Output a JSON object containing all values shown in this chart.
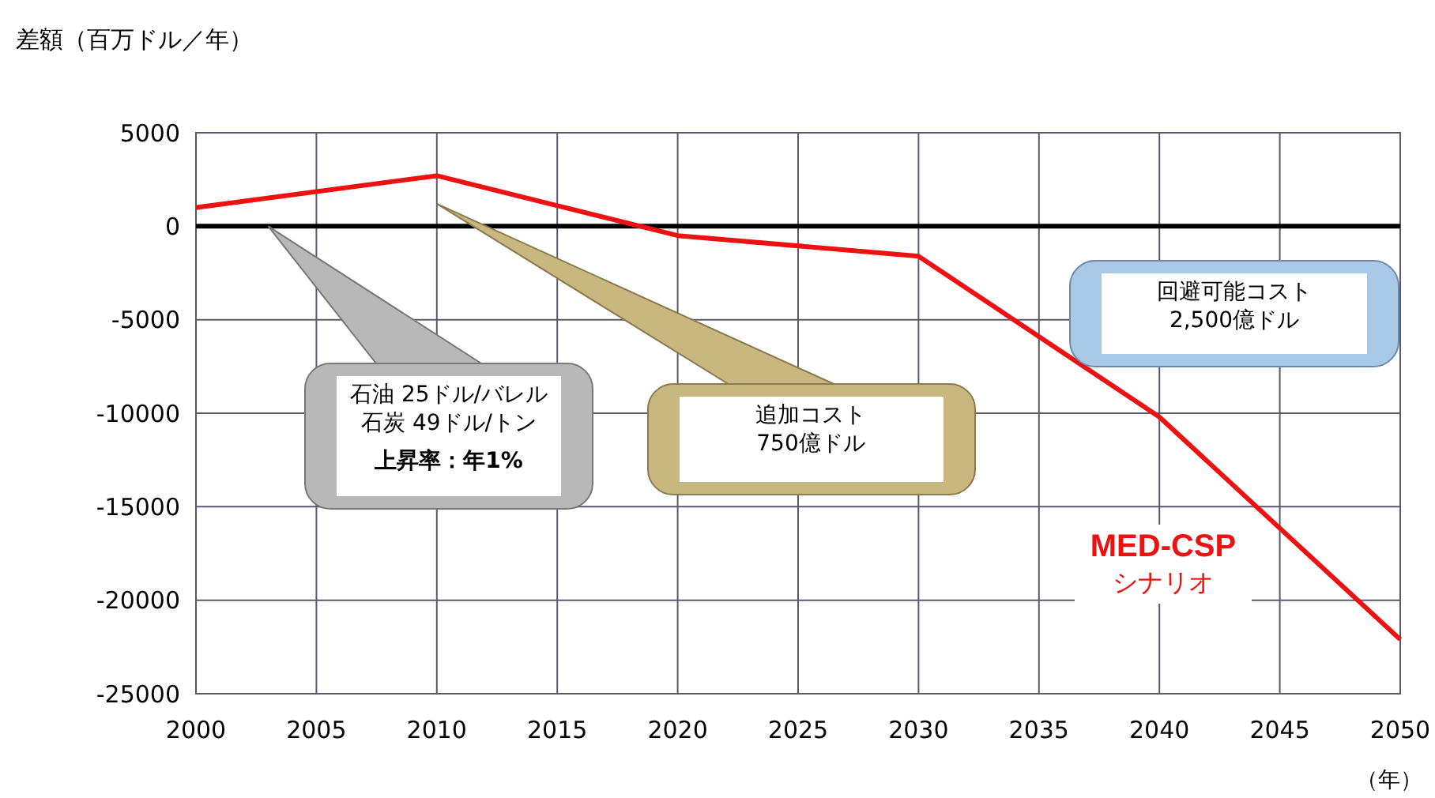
{
  "chart_data": {
    "type": "line",
    "ylabel": "差額（百万ドル／年）",
    "xlabel": "（年）",
    "x": [
      2000,
      2010,
      2020,
      2030,
      2040,
      2050
    ],
    "series": [
      {
        "name": "MED-CSP",
        "color": "#ee1111",
        "values": [
          1000,
          2700,
          -500,
          -1600,
          -10200,
          -22100
        ]
      }
    ],
    "xlim": [
      2000,
      2050
    ],
    "xticks": [
      2000,
      2005,
      2010,
      2015,
      2020,
      2025,
      2030,
      2035,
      2040,
      2045,
      2050
    ],
    "ylim": [
      -25000,
      5000
    ],
    "yticks": [
      5000,
      0,
      -5000,
      -10000,
      -15000,
      -20000,
      -25000
    ],
    "grid": true,
    "marker": "none",
    "line_style": "solid",
    "ref_lines": [
      {
        "axis": "y",
        "value": 0,
        "color": "#000000"
      }
    ],
    "annotations": [
      "石油 25ドル/バレル",
      "石炭 49ドル/トン",
      "上昇率：年1%",
      "追加コスト",
      "750億ドル",
      "回避可能コスト",
      "2,500億ドル",
      "シナリオ"
    ]
  }
}
